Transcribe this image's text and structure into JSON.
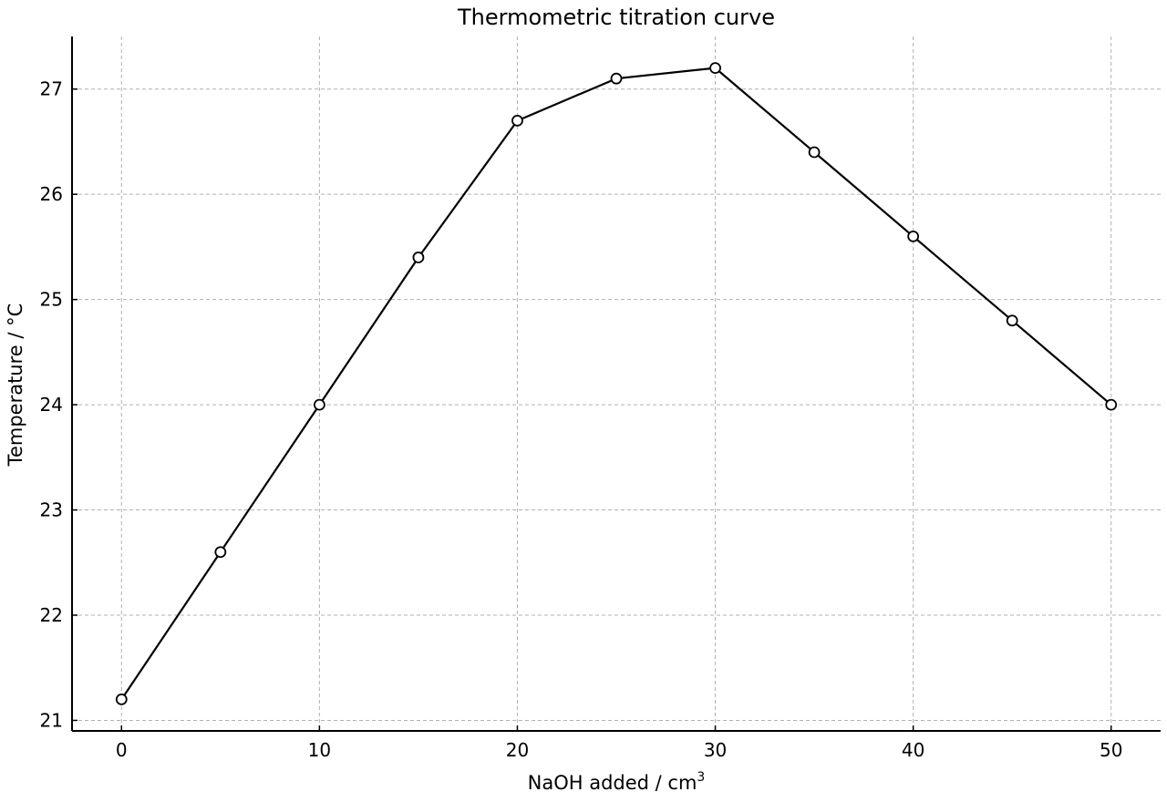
{
  "chart_data": {
    "type": "line",
    "title": "Thermometric titration curve",
    "xlabel": "NaOH added / cm",
    "xlabel_superscript": "3",
    "ylabel": "Temperature / °C",
    "xlim": [
      -2.5,
      52.5
    ],
    "ylim": [
      20.9,
      27.5
    ],
    "xticks": [
      0,
      10,
      20,
      30,
      40,
      50
    ],
    "yticks": [
      21,
      22,
      23,
      24,
      25,
      26,
      27
    ],
    "grid": true,
    "series": [
      {
        "x": [
          0,
          5,
          10,
          15,
          20,
          25,
          30,
          35,
          40,
          45,
          50
        ],
        "y": [
          21.2,
          22.6,
          24.0,
          25.4,
          26.7,
          27.1,
          27.2,
          26.4,
          25.6,
          24.8,
          24.0
        ],
        "marker": "open-circle"
      }
    ],
    "colors": {
      "line": "#000000",
      "marker_fill": "#ffffff",
      "grid": "#b0b0b0",
      "axis": "#000000"
    }
  }
}
